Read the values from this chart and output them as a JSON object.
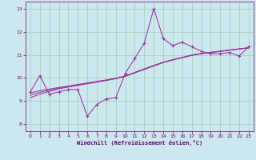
{
  "xlabel": "Windchill (Refroidissement éolien,°C)",
  "background_color": "#cce8ee",
  "grid_color": "#99ccbb",
  "line_color": "#993399",
  "spine_color": "#660066",
  "tick_color": "#660066",
  "x_data": [
    0,
    1,
    2,
    3,
    4,
    5,
    6,
    7,
    8,
    9,
    10,
    11,
    12,
    13,
    14,
    15,
    16,
    17,
    18,
    19,
    20,
    21,
    22,
    23
  ],
  "y_main": [
    9.4,
    10.1,
    9.3,
    9.4,
    9.5,
    9.5,
    8.35,
    8.85,
    9.1,
    9.15,
    10.2,
    10.85,
    11.5,
    13.0,
    11.7,
    11.4,
    11.55,
    11.35,
    11.15,
    11.05,
    11.05,
    11.1,
    10.95,
    11.35
  ],
  "y_smooth1": [
    9.35,
    9.45,
    9.52,
    9.59,
    9.65,
    9.72,
    9.78,
    9.85,
    9.91,
    9.98,
    10.07,
    10.22,
    10.37,
    10.52,
    10.67,
    10.78,
    10.88,
    10.98,
    11.05,
    11.1,
    11.15,
    11.2,
    11.25,
    11.3
  ],
  "y_smooth2": [
    9.25,
    9.38,
    9.47,
    9.56,
    9.63,
    9.7,
    9.77,
    9.84,
    9.91,
    9.99,
    10.09,
    10.24,
    10.39,
    10.54,
    10.68,
    10.79,
    10.89,
    10.99,
    11.06,
    11.11,
    11.16,
    11.21,
    11.26,
    11.31
  ],
  "y_smooth3": [
    9.15,
    9.3,
    9.42,
    9.53,
    9.61,
    9.68,
    9.75,
    9.82,
    9.89,
    9.97,
    10.08,
    10.23,
    10.38,
    10.53,
    10.67,
    10.78,
    10.88,
    10.98,
    11.05,
    11.1,
    11.15,
    11.2,
    11.25,
    11.3
  ],
  "ylim": [
    7.7,
    13.3
  ],
  "yticks": [
    8,
    9,
    10,
    11,
    12,
    13
  ],
  "xlim": [
    -0.5,
    23.5
  ],
  "xticks": [
    0,
    1,
    2,
    3,
    4,
    5,
    6,
    7,
    8,
    9,
    10,
    11,
    12,
    13,
    14,
    15,
    16,
    17,
    18,
    19,
    20,
    21,
    22,
    23
  ]
}
